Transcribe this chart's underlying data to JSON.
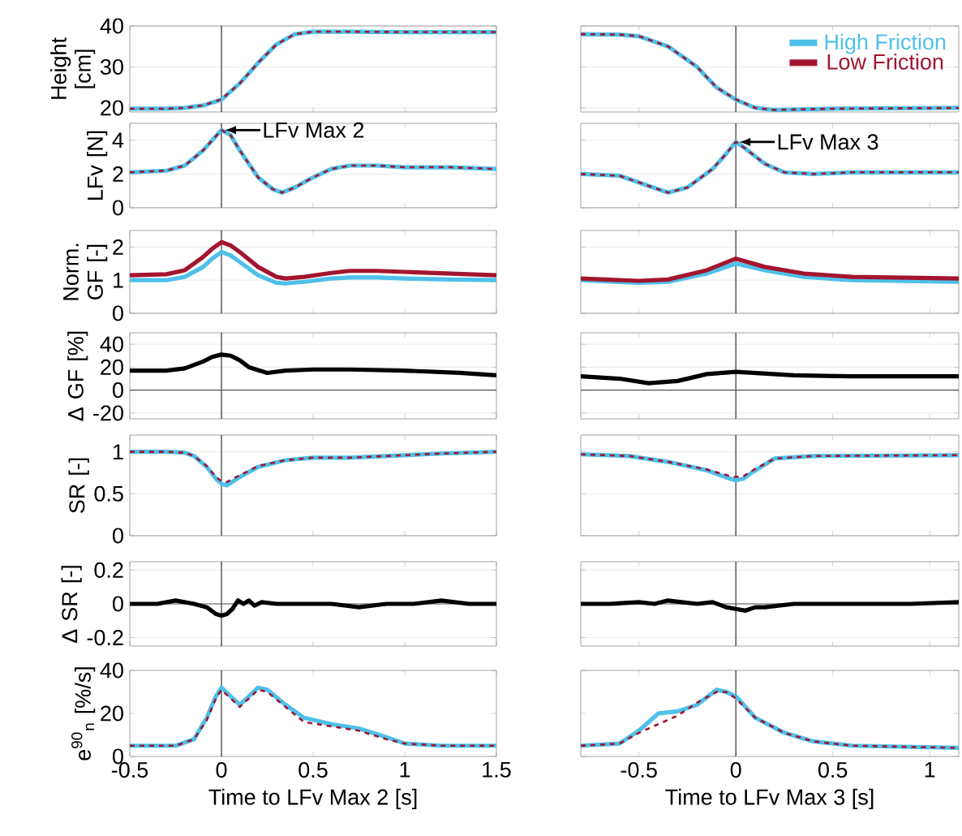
{
  "chart_data": [
    {
      "type": "line",
      "ylabel": "Height [cm]",
      "xlim": [
        -0.5,
        1.5
      ],
      "xticks": [
        -0.5,
        0,
        0.5,
        1,
        1.5
      ],
      "ylim": [
        19,
        40
      ],
      "yticks": [
        20,
        30,
        40
      ],
      "tick_labels": "y",
      "grid": "y",
      "line_style": "solid",
      "ref_lines": [
        {
          "axis": "x",
          "value": 0,
          "color": "#333333"
        }
      ],
      "x": [
        -0.5,
        -0.3,
        -0.2,
        -0.1,
        0,
        0.1,
        0.2,
        0.3,
        0.4,
        0.5,
        0.7,
        1.0,
        1.5
      ],
      "series": [
        {
          "color": "#4ec0e9",
          "values": [
            19.8,
            19.8,
            20.0,
            20.6,
            22,
            26,
            31,
            35.5,
            38,
            38.6,
            38.6,
            38.5,
            38.5
          ]
        },
        {
          "color": "#a3152f",
          "line_style": "dashed",
          "values": [
            19.8,
            19.8,
            20.0,
            20.6,
            22.1,
            26,
            31,
            35.5,
            38,
            38.6,
            38.6,
            38.5,
            38.5
          ]
        }
      ]
    },
    {
      "type": "line",
      "xlim": [
        -0.8,
        1.15
      ],
      "xticks": [
        -0.5,
        0,
        0.5,
        1
      ],
      "ylim": [
        19,
        40
      ],
      "yticks": [
        20,
        30,
        40
      ],
      "tick_labels": false,
      "grid": "y",
      "line_style": "solid",
      "legend": "top right",
      "ref_lines": [
        {
          "axis": "x",
          "value": 0,
          "color": "#333333"
        }
      ],
      "x": [
        -0.8,
        -0.6,
        -0.5,
        -0.35,
        -0.2,
        -0.1,
        0,
        0.1,
        0.2,
        0.5,
        1.15
      ],
      "series": [
        {
          "name": "High Friction",
          "color": "#4ec0e9",
          "values": [
            38,
            37.9,
            37.5,
            35,
            30,
            25,
            22,
            20,
            19.5,
            19.8,
            20
          ]
        },
        {
          "name": "Low Friction",
          "color": "#a3152f",
          "line_style": "dashed",
          "values": [
            38,
            37.9,
            37.5,
            35,
            30,
            25,
            22.1,
            20,
            19.5,
            19.8,
            20
          ]
        }
      ]
    },
    {
      "type": "line",
      "ylabel": "LFv [N]",
      "xlim": [
        -0.5,
        1.5
      ],
      "xticks": [
        -0.5,
        0,
        0.5,
        1,
        1.5
      ],
      "ylim": [
        0,
        5
      ],
      "yticks": [
        0,
        2,
        4
      ],
      "tick_labels": "y",
      "grid": "y",
      "line_style": "solid",
      "ref_lines": [
        {
          "axis": "x",
          "value": 0,
          "color": "#333333"
        }
      ],
      "annotations": [
        {
          "text": "LFv Max 2",
          "x": 0,
          "y": 4.6
        }
      ],
      "x": [
        -0.5,
        -0.3,
        -0.2,
        -0.1,
        -0.05,
        0,
        0.05,
        0.1,
        0.2,
        0.28,
        0.33,
        0.4,
        0.5,
        0.6,
        0.7,
        0.85,
        1.0,
        1.25,
        1.5
      ],
      "series": [
        {
          "color": "#4ec0e9",
          "values": [
            2.1,
            2.2,
            2.5,
            3.4,
            4.0,
            4.6,
            4.3,
            3.4,
            1.8,
            1.1,
            0.9,
            1.2,
            1.8,
            2.3,
            2.5,
            2.5,
            2.4,
            2.4,
            2.3
          ]
        },
        {
          "color": "#a3152f",
          "line_style": "dashed",
          "values": [
            2.1,
            2.2,
            2.5,
            3.4,
            4.0,
            4.6,
            4.3,
            3.4,
            1.8,
            1.1,
            0.9,
            1.2,
            1.8,
            2.3,
            2.5,
            2.5,
            2.4,
            2.4,
            2.3
          ]
        }
      ]
    },
    {
      "type": "line",
      "xlim": [
        -0.8,
        1.15
      ],
      "xticks": [
        -0.5,
        0,
        0.5,
        1
      ],
      "ylim": [
        0,
        5
      ],
      "yticks": [
        0,
        2,
        4
      ],
      "tick_labels": false,
      "grid": "y",
      "line_style": "solid",
      "ref_lines": [
        {
          "axis": "x",
          "value": 0,
          "color": "#333333"
        }
      ],
      "annotations": [
        {
          "text": "LFv Max 3",
          "x": 0,
          "y": 3.9
        }
      ],
      "x": [
        -0.8,
        -0.6,
        -0.45,
        -0.35,
        -0.25,
        -0.12,
        -0.05,
        0,
        0.05,
        0.15,
        0.25,
        0.4,
        0.6,
        1.15
      ],
      "series": [
        {
          "color": "#4ec0e9",
          "values": [
            2.0,
            1.9,
            1.3,
            0.9,
            1.2,
            2.3,
            3.2,
            3.9,
            3.5,
            2.6,
            2.1,
            2.0,
            2.1,
            2.1
          ]
        },
        {
          "color": "#a3152f",
          "line_style": "dashed",
          "values": [
            2.0,
            1.9,
            1.3,
            0.9,
            1.2,
            2.3,
            3.2,
            3.9,
            3.5,
            2.6,
            2.1,
            2.0,
            2.1,
            2.1
          ]
        }
      ]
    },
    {
      "type": "line",
      "ylabel": "Norm. GF [-]",
      "xlim": [
        -0.5,
        1.5
      ],
      "xticks": [
        -0.5,
        0,
        0.5,
        1,
        1.5
      ],
      "ylim": [
        0,
        2.5
      ],
      "yticks": [
        0,
        1,
        2
      ],
      "tick_labels": "y",
      "grid": "y",
      "line_style": "solid",
      "ref_lines": [
        {
          "axis": "x",
          "value": 0,
          "color": "#333333"
        }
      ],
      "x": [
        -0.5,
        -0.3,
        -0.2,
        -0.1,
        -0.05,
        0,
        0.05,
        0.1,
        0.2,
        0.3,
        0.35,
        0.45,
        0.6,
        0.7,
        0.85,
        1.0,
        1.25,
        1.5
      ],
      "series": [
        {
          "color": "#4ec0e9",
          "values": [
            1.0,
            1.0,
            1.1,
            1.4,
            1.65,
            1.85,
            1.75,
            1.55,
            1.15,
            0.92,
            0.9,
            0.95,
            1.05,
            1.08,
            1.08,
            1.05,
            1.02,
            1.0
          ]
        },
        {
          "color": "#a3152f",
          "values": [
            1.15,
            1.18,
            1.3,
            1.7,
            1.95,
            2.15,
            2.05,
            1.85,
            1.4,
            1.1,
            1.05,
            1.1,
            1.22,
            1.28,
            1.28,
            1.25,
            1.2,
            1.15
          ]
        }
      ]
    },
    {
      "type": "line",
      "xlim": [
        -0.8,
        1.15
      ],
      "xticks": [
        -0.5,
        0,
        0.5,
        1
      ],
      "ylim": [
        0,
        2.5
      ],
      "yticks": [
        0,
        1,
        2
      ],
      "tick_labels": false,
      "grid": "y",
      "line_style": "solid",
      "ref_lines": [
        {
          "axis": "x",
          "value": 0,
          "color": "#333333"
        }
      ],
      "x": [
        -0.8,
        -0.5,
        -0.35,
        -0.15,
        0,
        0.15,
        0.35,
        0.6,
        1.15
      ],
      "series": [
        {
          "color": "#4ec0e9",
          "values": [
            1.0,
            0.92,
            0.95,
            1.2,
            1.5,
            1.3,
            1.1,
            1.0,
            0.95
          ]
        },
        {
          "color": "#a3152f",
          "values": [
            1.05,
            0.98,
            1.02,
            1.3,
            1.65,
            1.4,
            1.2,
            1.1,
            1.05
          ]
        }
      ]
    },
    {
      "type": "line",
      "ylabel": "Δ GF [%]",
      "xlim": [
        -0.5,
        1.5
      ],
      "xticks": [
        -0.5,
        0,
        0.5,
        1,
        1.5
      ],
      "ylim": [
        -25,
        50
      ],
      "yticks": [
        -20,
        0,
        20,
        40
      ],
      "tick_labels": "y",
      "grid": "y",
      "line_style": "solid",
      "ref_lines": [
        {
          "axis": "x",
          "value": 0,
          "color": "#333333"
        },
        {
          "axis": "y",
          "value": 0,
          "color": "#555555"
        }
      ],
      "x": [
        -0.5,
        -0.3,
        -0.2,
        -0.1,
        -0.05,
        0,
        0.05,
        0.1,
        0.15,
        0.25,
        0.35,
        0.5,
        0.7,
        1.0,
        1.3,
        1.5
      ],
      "series": [
        {
          "color": "#000000",
          "values": [
            17,
            17,
            19,
            25,
            29,
            31,
            30,
            26,
            20,
            15,
            17,
            18,
            18,
            17,
            15,
            13
          ]
        }
      ]
    },
    {
      "type": "line",
      "xlim": [
        -0.8,
        1.15
      ],
      "xticks": [
        -0.5,
        0,
        0.5,
        1
      ],
      "ylim": [
        -25,
        50
      ],
      "yticks": [
        -20,
        0,
        20,
        40
      ],
      "tick_labels": false,
      "grid": "y",
      "line_style": "solid",
      "ref_lines": [
        {
          "axis": "x",
          "value": 0,
          "color": "#333333"
        },
        {
          "axis": "y",
          "value": 0,
          "color": "#555555"
        }
      ],
      "x": [
        -0.8,
        -0.6,
        -0.45,
        -0.3,
        -0.15,
        0,
        0.1,
        0.3,
        0.6,
        1.15
      ],
      "series": [
        {
          "color": "#000000",
          "values": [
            12,
            10,
            6,
            8,
            14,
            16,
            15,
            13,
            12,
            12
          ]
        }
      ]
    },
    {
      "type": "line",
      "ylabel": "SR [-]",
      "xlim": [
        -0.5,
        1.5
      ],
      "xticks": [
        -0.5,
        0,
        0.5,
        1,
        1.5
      ],
      "ylim": [
        0,
        1.2
      ],
      "yticks": [
        0,
        0.5,
        1
      ],
      "tick_labels": "y",
      "grid": "y",
      "line_style": "solid",
      "ref_lines": [
        {
          "axis": "x",
          "value": 0,
          "color": "#333333"
        }
      ],
      "x": [
        -0.5,
        -0.3,
        -0.2,
        -0.15,
        -0.08,
        -0.03,
        0,
        0.03,
        0.1,
        0.2,
        0.35,
        0.5,
        0.7,
        1.0,
        1.2,
        1.5
      ],
      "series": [
        {
          "color": "#4ec0e9",
          "values": [
            1.0,
            1.0,
            0.99,
            0.95,
            0.82,
            0.68,
            0.62,
            0.6,
            0.7,
            0.82,
            0.9,
            0.93,
            0.93,
            0.96,
            0.98,
            1.0
          ]
        },
        {
          "color": "#a3152f",
          "line_style": "dashed",
          "values": [
            1.0,
            1.0,
            0.99,
            0.95,
            0.83,
            0.7,
            0.65,
            0.64,
            0.72,
            0.83,
            0.9,
            0.93,
            0.93,
            0.96,
            0.98,
            1.0
          ]
        }
      ]
    },
    {
      "type": "line",
      "xlim": [
        -0.8,
        1.15
      ],
      "xticks": [
        -0.5,
        0,
        0.5,
        1
      ],
      "ylim": [
        0,
        1.2
      ],
      "yticks": [
        0,
        0.5,
        1
      ],
      "tick_labels": false,
      "grid": "y",
      "line_style": "solid",
      "ref_lines": [
        {
          "axis": "x",
          "value": 0,
          "color": "#333333"
        }
      ],
      "x": [
        -0.8,
        -0.55,
        -0.35,
        -0.15,
        -0.03,
        0,
        0.04,
        0.08,
        0.2,
        0.4,
        1.15
      ],
      "series": [
        {
          "color": "#4ec0e9",
          "values": [
            0.97,
            0.95,
            0.88,
            0.78,
            0.68,
            0.66,
            0.68,
            0.75,
            0.92,
            0.95,
            0.96
          ]
        },
        {
          "color": "#a3152f",
          "line_style": "dashed",
          "values": [
            0.97,
            0.95,
            0.88,
            0.79,
            0.71,
            0.7,
            0.71,
            0.77,
            0.92,
            0.95,
            0.96
          ]
        }
      ]
    },
    {
      "type": "line",
      "ylabel": "Δ SR [-]",
      "xlim": [
        -0.5,
        1.5
      ],
      "xticks": [
        -0.5,
        0,
        0.5,
        1,
        1.5
      ],
      "ylim": [
        -0.25,
        0.25
      ],
      "yticks": [
        -0.2,
        0,
        0.2
      ],
      "tick_labels": "y",
      "grid": "y",
      "line_style": "solid",
      "ref_lines": [
        {
          "axis": "x",
          "value": 0,
          "color": "#333333"
        },
        {
          "axis": "y",
          "value": 0,
          "color": "#555555"
        }
      ],
      "x": [
        -0.5,
        -0.35,
        -0.25,
        -0.15,
        -0.08,
        -0.03,
        0,
        0.03,
        0.06,
        0.09,
        0.12,
        0.15,
        0.18,
        0.22,
        0.3,
        0.45,
        0.6,
        0.75,
        0.9,
        1.05,
        1.2,
        1.35,
        1.5
      ],
      "series": [
        {
          "color": "#000000",
          "values": [
            0,
            0,
            0.02,
            0,
            -0.02,
            -0.06,
            -0.07,
            -0.06,
            -0.03,
            0.02,
            0,
            0.02,
            -0.01,
            0.01,
            0,
            0,
            0,
            -0.02,
            0,
            0,
            0.02,
            0,
            0
          ]
        }
      ]
    },
    {
      "type": "line",
      "xlim": [
        -0.8,
        1.15
      ],
      "xticks": [
        -0.5,
        0,
        0.5,
        1
      ],
      "ylim": [
        -0.25,
        0.25
      ],
      "yticks": [
        -0.2,
        0,
        0.2
      ],
      "tick_labels": false,
      "grid": "y",
      "line_style": "solid",
      "ref_lines": [
        {
          "axis": "x",
          "value": 0,
          "color": "#333333"
        },
        {
          "axis": "y",
          "value": 0,
          "color": "#555555"
        }
      ],
      "x": [
        -0.8,
        -0.65,
        -0.5,
        -0.42,
        -0.35,
        -0.28,
        -0.2,
        -0.12,
        -0.05,
        0,
        0.05,
        0.1,
        0.15,
        0.3,
        0.6,
        0.9,
        1.15
      ],
      "series": [
        {
          "color": "#000000",
          "values": [
            0,
            0,
            0.01,
            0,
            0.02,
            0.01,
            0,
            0.01,
            -0.02,
            -0.03,
            -0.04,
            -0.02,
            -0.02,
            0,
            0,
            0,
            0.01
          ]
        }
      ]
    },
    {
      "type": "line",
      "ylabel": "e$^{90}$$_{n}$ [%/s]",
      "xlabel": "Time to LFv Max 2 [s]",
      "xlim": [
        -0.5,
        1.5
      ],
      "xticks": [
        -0.5,
        0,
        0.5,
        1,
        1.5
      ],
      "ylim": [
        0,
        40
      ],
      "yticks": [
        0,
        20,
        40
      ],
      "line_style": "solid",
      "ref_lines": [
        {
          "axis": "x",
          "value": 0,
          "color": "#333333"
        }
      ],
      "x": [
        -0.5,
        -0.25,
        -0.15,
        -0.08,
        -0.03,
        0,
        0.05,
        0.1,
        0.15,
        0.2,
        0.25,
        0.35,
        0.45,
        0.6,
        0.75,
        0.9,
        1.0,
        1.2,
        1.5
      ],
      "series": [
        {
          "color": "#4ec0e9",
          "values": [
            5,
            5,
            8,
            18,
            28,
            32,
            28,
            24,
            28,
            32,
            31,
            24,
            18,
            15,
            13,
            9,
            6,
            5,
            5
          ]
        },
        {
          "color": "#a3152f",
          "line_style": "dashed",
          "values": [
            5,
            5,
            8,
            17,
            27,
            31,
            27,
            23,
            27,
            31,
            30,
            23,
            16,
            14,
            12,
            8,
            6,
            5,
            5
          ]
        }
      ]
    },
    {
      "type": "line",
      "xlabel": "Time to LFv Max 3 [s]",
      "xlim": [
        -0.8,
        1.15
      ],
      "xticks": [
        -0.5,
        0,
        0.5,
        1
      ],
      "ylim": [
        0,
        40
      ],
      "yticks": [
        0,
        20,
        40
      ],
      "tick_labels": "x",
      "line_style": "solid",
      "ref_lines": [
        {
          "axis": "x",
          "value": 0,
          "color": "#333333"
        }
      ],
      "x": [
        -0.8,
        -0.6,
        -0.5,
        -0.4,
        -0.3,
        -0.2,
        -0.1,
        -0.05,
        0,
        0.1,
        0.25,
        0.4,
        0.6,
        1.15
      ],
      "series": [
        {
          "color": "#4ec0e9",
          "values": [
            5,
            6,
            12,
            20,
            21,
            24,
            31,
            30,
            28,
            18,
            11,
            7,
            5,
            4
          ]
        },
        {
          "color": "#a3152f",
          "line_style": "dashed",
          "values": [
            5,
            6,
            11,
            15,
            19,
            25,
            30,
            30,
            27,
            18,
            11,
            7,
            5,
            4
          ]
        }
      ]
    }
  ]
}
